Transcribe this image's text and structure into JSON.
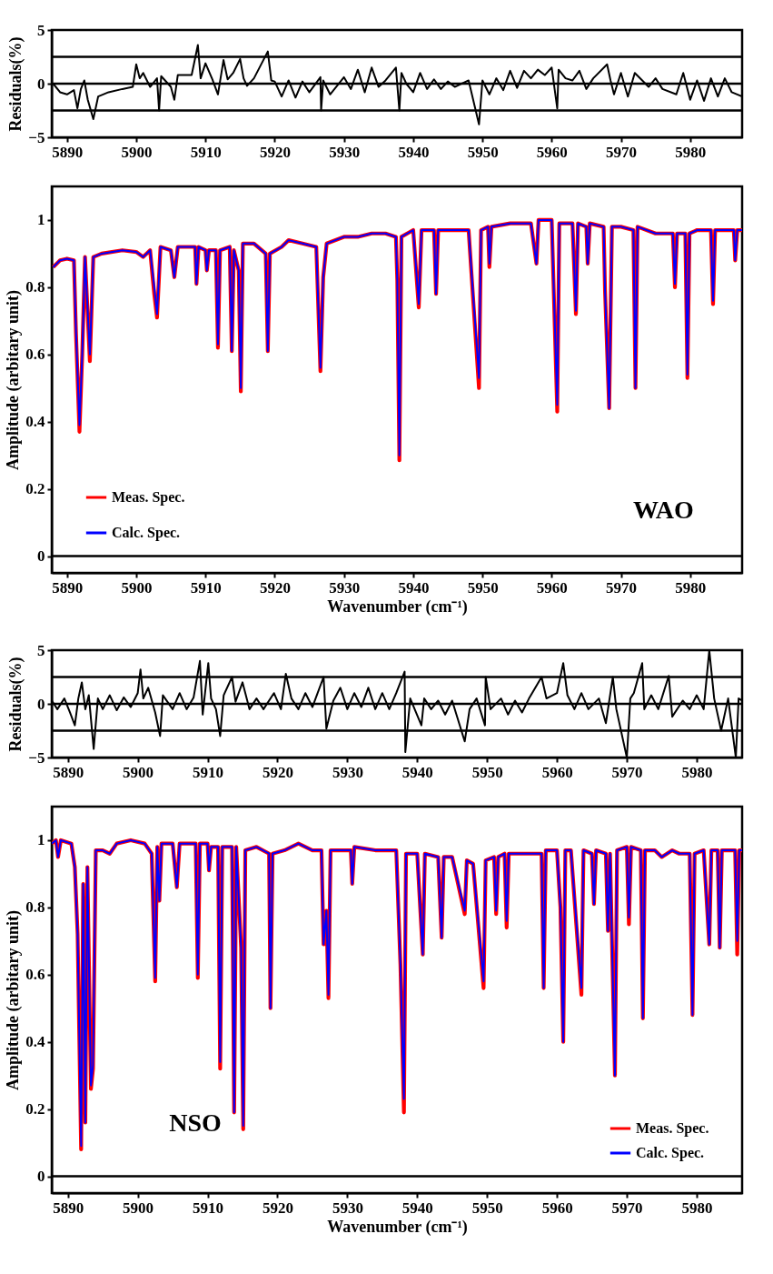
{
  "chart_data": [
    {
      "type": "line",
      "ylabel": "Residuals(%)",
      "xlim": [
        5887.8,
        5987.5
      ],
      "ylim": [
        -5,
        5
      ],
      "xticks": [
        5890,
        5900,
        5910,
        5920,
        5930,
        5940,
        5950,
        5960,
        5970,
        5980
      ],
      "yticks": [
        -5,
        0,
        5
      ],
      "legend": false,
      "x": [
        5888,
        5889,
        5890,
        5891,
        5891.5,
        5892,
        5892.5,
        5893,
        5893.8,
        5894.5,
        5896,
        5898,
        5899.5,
        5900,
        5900.5,
        5901,
        5902,
        5903,
        5903.3,
        5903.6,
        5905,
        5905.5,
        5906,
        5908,
        5908.9,
        5909.3,
        5910,
        5911,
        5911.8,
        5912.6,
        5913.2,
        5914,
        5915,
        5915.5,
        5916,
        5917,
        5919,
        5919.5,
        5920,
        5921,
        5922,
        5923,
        5924,
        5925,
        5926.6,
        5926.7,
        5927,
        5928,
        5930,
        5931,
        5932,
        5933,
        5934,
        5935,
        5936,
        5937.5,
        5938,
        5938.3,
        5939,
        5940,
        5941,
        5942,
        5943,
        5944,
        5945,
        5946,
        5948,
        5949.5,
        5950,
        5951,
        5952,
        5953,
        5954,
        5955,
        5956,
        5957,
        5958,
        5959,
        5960,
        5960.8,
        5961,
        5962,
        5963,
        5964,
        5965,
        5966,
        5968,
        5968.5,
        5969,
        5970,
        5971,
        5972,
        5974,
        5975,
        5976,
        5978,
        5979,
        5980,
        5981,
        5982,
        5983,
        5984,
        5985,
        5986,
        5987.5
      ],
      "series": [
        {
          "color": "#000000",
          "values": [
            0,
            -0.8,
            -1,
            -0.6,
            -2.3,
            -0.5,
            0.3,
            -1.5,
            -3.3,
            -1.2,
            -0.8,
            -0.5,
            -0.3,
            1.8,
            0.5,
            1.0,
            -0.3,
            0.5,
            -2.5,
            0.7,
            -0.3,
            -1.5,
            0.8,
            0.8,
            3.6,
            0.5,
            1.9,
            0.4,
            -1.0,
            2.2,
            0.4,
            1.0,
            2.3,
            0.5,
            -0.2,
            0.5,
            3.0,
            0.3,
            0.2,
            -1.2,
            0.3,
            -1.3,
            0.2,
            -0.8,
            0.6,
            -2.5,
            0.3,
            -1.0,
            0.6,
            -0.5,
            1.3,
            -0.8,
            1.5,
            -0.3,
            0.3,
            1.5,
            -2.5,
            1.0,
            0,
            -0.8,
            1.0,
            -0.5,
            0.4,
            -0.5,
            0.2,
            -0.3,
            0.3,
            -3.8,
            0.3,
            -1.0,
            0.5,
            -0.6,
            1.2,
            -0.4,
            1.2,
            0.5,
            1.3,
            0.8,
            1.5,
            -2.3,
            1.3,
            0.5,
            0.3,
            1.2,
            -0.5,
            0.5,
            1.8,
            0.3,
            -1.0,
            1.0,
            -1.2,
            1.0,
            -0.3,
            0.5,
            -0.5,
            -1.0,
            1.0,
            -1.5,
            0.3,
            -1.6,
            0.5,
            -1.2,
            0.5,
            -0.8,
            -1.2
          ]
        }
      ],
      "ref_lines": [
        {
          "axis": "y",
          "value": 2.5
        },
        {
          "axis": "y",
          "value": 0
        },
        {
          "axis": "y",
          "value": -2.5
        }
      ]
    },
    {
      "type": "line",
      "xlabel": "Wavenumber (cm⁻¹)",
      "ylabel": "Amplitude (arbitary unit)",
      "xlim": [
        5887.8,
        5987.5
      ],
      "ylim": [
        -0.05,
        1.1
      ],
      "xticks": [
        5890,
        5900,
        5910,
        5920,
        5930,
        5940,
        5950,
        5960,
        5970,
        5980
      ],
      "yticks": [
        0,
        0.2,
        0.4,
        0.6,
        0.8,
        1
      ],
      "legend": "bottom left",
      "annotations": [
        "WAO"
      ],
      "x": [
        5888,
        5889,
        5890,
        5891,
        5891.3,
        5891.8,
        5892.2,
        5892.6,
        5893.3,
        5893.8,
        5895,
        5898,
        5900,
        5901,
        5902,
        5902.6,
        5903,
        5903.5,
        5905,
        5905.5,
        5906,
        5908.5,
        5908.7,
        5909,
        5910,
        5910.2,
        5910.5,
        5911.5,
        5911.8,
        5912.1,
        5913.5,
        5913.8,
        5914.1,
        5914.8,
        5915.1,
        5915.4,
        5917,
        5918.7,
        5919,
        5919.3,
        5921,
        5922,
        5924,
        5926,
        5926.6,
        5927,
        5927.5,
        5930,
        5932,
        5934,
        5936,
        5937.5,
        5937.7,
        5938,
        5938.3,
        5940,
        5940.8,
        5941.2,
        5943,
        5943.3,
        5943.6,
        5946,
        5948,
        5949.5,
        5949.8,
        5950.8,
        5951,
        5951.3,
        5954,
        5957,
        5957.8,
        5958.1,
        5960,
        5960.8,
        5961.1,
        5963,
        5963.5,
        5963.8,
        5965,
        5965.2,
        5965.5,
        5967.5,
        5967.7,
        5968.3,
        5968.7,
        5970,
        5971.8,
        5972.1,
        5972.4,
        5975,
        5977.5,
        5977.8,
        5978.1,
        5979.3,
        5979.6,
        5979.9,
        5981,
        5983,
        5983.3,
        5983.6,
        5985,
        5986.3,
        5986.5,
        5986.8,
        5987.5
      ],
      "series": [
        {
          "name": "Meas. Spec.",
          "color": "#ff0000",
          "values": [
            0.86,
            0.88,
            0.885,
            0.88,
            0.66,
            0.37,
            0.6,
            0.89,
            0.58,
            0.89,
            0.9,
            0.91,
            0.905,
            0.89,
            0.91,
            0.78,
            0.71,
            0.92,
            0.91,
            0.83,
            0.92,
            0.92,
            0.81,
            0.92,
            0.91,
            0.85,
            0.91,
            0.91,
            0.62,
            0.91,
            0.92,
            0.61,
            0.91,
            0.85,
            0.49,
            0.93,
            0.93,
            0.9,
            0.61,
            0.9,
            0.92,
            0.94,
            0.93,
            0.92,
            0.55,
            0.83,
            0.93,
            0.95,
            0.95,
            0.96,
            0.96,
            0.95,
            0.82,
            0.285,
            0.95,
            0.97,
            0.74,
            0.97,
            0.97,
            0.78,
            0.97,
            0.97,
            0.97,
            0.5,
            0.97,
            0.98,
            0.86,
            0.98,
            0.99,
            0.99,
            0.87,
            1.0,
            1.0,
            0.43,
            0.99,
            0.99,
            0.72,
            0.99,
            0.98,
            0.87,
            0.99,
            0.98,
            0.79,
            0.44,
            0.98,
            0.98,
            0.97,
            0.5,
            0.98,
            0.96,
            0.96,
            0.8,
            0.96,
            0.96,
            0.53,
            0.96,
            0.97,
            0.97,
            0.75,
            0.97,
            0.97,
            0.97,
            0.88,
            0.97,
            0.97
          ]
        },
        {
          "name": "Calc. Spec.",
          "color": "#0000ff",
          "values": [
            0.86,
            0.88,
            0.885,
            0.88,
            0.67,
            0.39,
            0.6,
            0.89,
            0.6,
            0.89,
            0.9,
            0.91,
            0.905,
            0.89,
            0.91,
            0.8,
            0.72,
            0.92,
            0.91,
            0.83,
            0.92,
            0.92,
            0.81,
            0.92,
            0.91,
            0.85,
            0.91,
            0.91,
            0.63,
            0.91,
            0.92,
            0.61,
            0.91,
            0.85,
            0.5,
            0.93,
            0.93,
            0.9,
            0.61,
            0.9,
            0.92,
            0.94,
            0.93,
            0.92,
            0.56,
            0.83,
            0.93,
            0.95,
            0.95,
            0.96,
            0.96,
            0.95,
            0.82,
            0.3,
            0.95,
            0.97,
            0.75,
            0.97,
            0.97,
            0.78,
            0.97,
            0.97,
            0.97,
            0.53,
            0.97,
            0.98,
            0.87,
            0.98,
            0.99,
            0.99,
            0.87,
            1.0,
            1.0,
            0.45,
            0.99,
            0.99,
            0.73,
            0.99,
            0.98,
            0.87,
            0.99,
            0.98,
            0.79,
            0.44,
            0.98,
            0.98,
            0.97,
            0.5,
            0.98,
            0.96,
            0.96,
            0.81,
            0.96,
            0.96,
            0.54,
            0.96,
            0.97,
            0.97,
            0.76,
            0.97,
            0.97,
            0.97,
            0.88,
            0.97,
            0.97
          ]
        }
      ],
      "ref_lines": [
        {
          "axis": "y",
          "value": 0
        }
      ]
    },
    {
      "type": "line",
      "ylabel": "Residuals(%)",
      "xlim": [
        5887.7,
        5986.5
      ],
      "ylim": [
        -5,
        5
      ],
      "xticks": [
        5890,
        5900,
        5910,
        5920,
        5930,
        5940,
        5950,
        5960,
        5970,
        5980
      ],
      "yticks": [
        -5,
        0,
        5
      ],
      "legend": false,
      "x": [
        5887.7,
        5888.5,
        5889.5,
        5890.3,
        5891,
        5891.5,
        5892,
        5892.5,
        5893,
        5893.7,
        5894.3,
        5895,
        5896,
        5897,
        5898,
        5899,
        5900,
        5900.4,
        5900.8,
        5901.5,
        5902.5,
        5903.2,
        5903.6,
        5905,
        5906,
        5907,
        5908,
        5908.9,
        5909.3,
        5910.1,
        5910.5,
        5911.2,
        5911.8,
        5912.3,
        5913.5,
        5914,
        5915,
        5916,
        5917,
        5918,
        5919.5,
        5920.5,
        5921.2,
        5922,
        5923,
        5924,
        5925,
        5926.6,
        5927,
        5928,
        5929,
        5930,
        5931,
        5932,
        5933,
        5934,
        5935,
        5936,
        5937,
        5938.2,
        5938.3,
        5939,
        5940.6,
        5941,
        5942,
        5943,
        5944,
        5945,
        5946.8,
        5947.5,
        5948.5,
        5949.7,
        5949.8,
        5950.5,
        5952,
        5953,
        5954,
        5955,
        5956,
        5957.8,
        5958.5,
        5960,
        5960.9,
        5961.5,
        5962.5,
        5963.5,
        5964.5,
        5966,
        5967,
        5968,
        5968.5,
        5970,
        5970.5,
        5971,
        5972.2,
        5972.5,
        5973.5,
        5974.5,
        5976,
        5976.5,
        5978,
        5979,
        5980,
        5981,
        5981.8,
        5982.5,
        5983.5,
        5984.5,
        5985.6,
        5986,
        5986.5
      ],
      "series": [
        {
          "color": "#000000",
          "values": [
            0.3,
            -0.5,
            0.5,
            -0.8,
            -2.0,
            0.5,
            2.0,
            -0.5,
            0.8,
            -4.2,
            0.5,
            -0.5,
            0.8,
            -0.6,
            0.6,
            -0.3,
            1.0,
            3.2,
            0.5,
            1.5,
            -0.8,
            -3.0,
            0.8,
            -0.5,
            1.0,
            -0.5,
            0.6,
            4.0,
            -1.0,
            3.8,
            0.5,
            -0.5,
            -3.0,
            0.8,
            2.5,
            0.2,
            2.0,
            -0.5,
            0.5,
            -0.5,
            1.0,
            -0.5,
            2.8,
            0.5,
            -0.5,
            1.0,
            -0.3,
            2.5,
            -2.3,
            0.3,
            1.5,
            -0.5,
            1.0,
            -0.3,
            1.5,
            -0.5,
            1.0,
            -0.5,
            1.0,
            3.0,
            -4.5,
            0.5,
            -2.0,
            0.5,
            -0.5,
            0.3,
            -1.0,
            0.3,
            -3.5,
            -0.5,
            0.5,
            -2.0,
            2.5,
            -0.5,
            0.5,
            -1.0,
            0.3,
            -0.8,
            0.5,
            2.5,
            0.5,
            1.0,
            3.8,
            0.8,
            -0.5,
            1.0,
            -0.5,
            0.5,
            -1.8,
            2.5,
            -0.5,
            -5,
            0.5,
            1.0,
            3.8,
            -0.5,
            0.8,
            -0.5,
            2.6,
            -1.2,
            0.3,
            -0.5,
            0.8,
            -0.5,
            5,
            0.5,
            -2.5,
            0.5,
            -5,
            0.5,
            0.3
          ]
        }
      ],
      "ref_lines": [
        {
          "axis": "y",
          "value": 2.5
        },
        {
          "axis": "y",
          "value": 0
        },
        {
          "axis": "y",
          "value": -2.5
        }
      ]
    },
    {
      "type": "line",
      "xlabel": "Wavenumber (cm⁻¹)",
      "ylabel": "Amplitude (arbitary unit)",
      "xlim": [
        5887.7,
        5986.5
      ],
      "ylim": [
        -0.05,
        1.1
      ],
      "xticks": [
        5890,
        5900,
        5910,
        5920,
        5930,
        5940,
        5950,
        5960,
        5970,
        5980
      ],
      "yticks": [
        0,
        0.2,
        0.4,
        0.6,
        0.8,
        1
      ],
      "legend": "bottom right",
      "annotations": [
        "NSO"
      ],
      "x": [
        5887.7,
        5888.3,
        5888.6,
        5889,
        5890.5,
        5891,
        5891.4,
        5891.9,
        5892.2,
        5892.5,
        5892.8,
        5893.3,
        5893.6,
        5894,
        5895,
        5896,
        5897,
        5899,
        5901,
        5902,
        5902.5,
        5902.8,
        5903.1,
        5903.4,
        5905,
        5905.6,
        5906,
        5908.3,
        5908.6,
        5908.9,
        5910,
        5910.2,
        5910.5,
        5911.5,
        5911.8,
        5912.1,
        5913.5,
        5913.8,
        5914.1,
        5914.8,
        5915.1,
        5915.4,
        5917,
        5918.8,
        5919,
        5919.3,
        5921,
        5923,
        5925,
        5926.3,
        5926.6,
        5927,
        5927.3,
        5927.6,
        5929,
        5930.5,
        5930.7,
        5931,
        5934,
        5937,
        5937.6,
        5938.1,
        5938.4,
        5940,
        5940.8,
        5941.1,
        5943,
        5943.5,
        5943.8,
        5945,
        5946.8,
        5947.1,
        5948,
        5949.5,
        5949.8,
        5951,
        5951.3,
        5951.6,
        5952.5,
        5952.8,
        5953.1,
        5955,
        5957.8,
        5958.1,
        5958.4,
        5960,
        5960.5,
        5960.9,
        5961.2,
        5962,
        5963.5,
        5963.8,
        5965,
        5965.3,
        5965.6,
        5967,
        5967.3,
        5967.6,
        5968.3,
        5968.6,
        5970,
        5970.3,
        5970.6,
        5972,
        5972.3,
        5972.6,
        5974,
        5975,
        5976.5,
        5977.5,
        5979,
        5979.4,
        5979.7,
        5981,
        5981.8,
        5982.1,
        5983,
        5983.3,
        5983.6,
        5985.5,
        5985.8,
        5986.1,
        5986.5
      ],
      "series": [
        {
          "name": "Meas. Spec.",
          "color": "#ff0000",
          "values": [
            0.99,
            1.0,
            0.95,
            1.0,
            0.99,
            0.92,
            0.72,
            0.08,
            0.87,
            0.16,
            0.92,
            0.26,
            0.32,
            0.97,
            0.97,
            0.96,
            0.99,
            1.0,
            0.99,
            0.96,
            0.58,
            0.98,
            0.82,
            0.99,
            0.99,
            0.86,
            0.99,
            0.99,
            0.59,
            0.99,
            0.99,
            0.91,
            0.98,
            0.98,
            0.32,
            0.98,
            0.98,
            0.19,
            0.98,
            0.68,
            0.14,
            0.97,
            0.98,
            0.96,
            0.5,
            0.96,
            0.97,
            0.99,
            0.97,
            0.97,
            0.69,
            0.79,
            0.53,
            0.97,
            0.97,
            0.97,
            0.87,
            0.98,
            0.97,
            0.97,
            0.63,
            0.19,
            0.96,
            0.96,
            0.66,
            0.96,
            0.95,
            0.71,
            0.95,
            0.95,
            0.78,
            0.94,
            0.93,
            0.56,
            0.94,
            0.95,
            0.78,
            0.95,
            0.96,
            0.74,
            0.96,
            0.96,
            0.96,
            0.56,
            0.97,
            0.97,
            0.8,
            0.4,
            0.97,
            0.97,
            0.54,
            0.97,
            0.96,
            0.81,
            0.97,
            0.96,
            0.73,
            0.96,
            0.3,
            0.97,
            0.98,
            0.75,
            0.98,
            0.97,
            0.47,
            0.97,
            0.97,
            0.95,
            0.97,
            0.96,
            0.96,
            0.48,
            0.96,
            0.97,
            0.69,
            0.97,
            0.97,
            0.68,
            0.97,
            0.97,
            0.66,
            0.97,
            0.97
          ]
        },
        {
          "name": "Calc. Spec.",
          "color": "#0000ff",
          "values": [
            0.99,
            1.0,
            0.95,
            1.0,
            0.99,
            0.92,
            0.72,
            0.09,
            0.87,
            0.16,
            0.92,
            0.27,
            0.33,
            0.97,
            0.97,
            0.96,
            0.99,
            1.0,
            0.99,
            0.96,
            0.59,
            0.98,
            0.82,
            0.99,
            0.99,
            0.86,
            0.99,
            0.99,
            0.6,
            0.99,
            0.99,
            0.91,
            0.98,
            0.98,
            0.34,
            0.98,
            0.98,
            0.19,
            0.98,
            0.68,
            0.15,
            0.97,
            0.98,
            0.96,
            0.5,
            0.96,
            0.97,
            0.99,
            0.97,
            0.97,
            0.69,
            0.79,
            0.54,
            0.97,
            0.97,
            0.97,
            0.87,
            0.98,
            0.97,
            0.97,
            0.63,
            0.23,
            0.96,
            0.96,
            0.66,
            0.96,
            0.95,
            0.71,
            0.95,
            0.95,
            0.79,
            0.94,
            0.93,
            0.58,
            0.94,
            0.95,
            0.79,
            0.95,
            0.96,
            0.76,
            0.96,
            0.96,
            0.96,
            0.56,
            0.97,
            0.97,
            0.8,
            0.4,
            0.97,
            0.97,
            0.56,
            0.97,
            0.96,
            0.81,
            0.97,
            0.96,
            0.73,
            0.96,
            0.3,
            0.97,
            0.98,
            0.77,
            0.98,
            0.97,
            0.47,
            0.97,
            0.97,
            0.95,
            0.97,
            0.96,
            0.96,
            0.48,
            0.96,
            0.97,
            0.69,
            0.97,
            0.97,
            0.68,
            0.97,
            0.97,
            0.7,
            0.97,
            0.97
          ]
        }
      ],
      "ref_lines": [
        {
          "axis": "y",
          "value": 0
        }
      ]
    }
  ]
}
